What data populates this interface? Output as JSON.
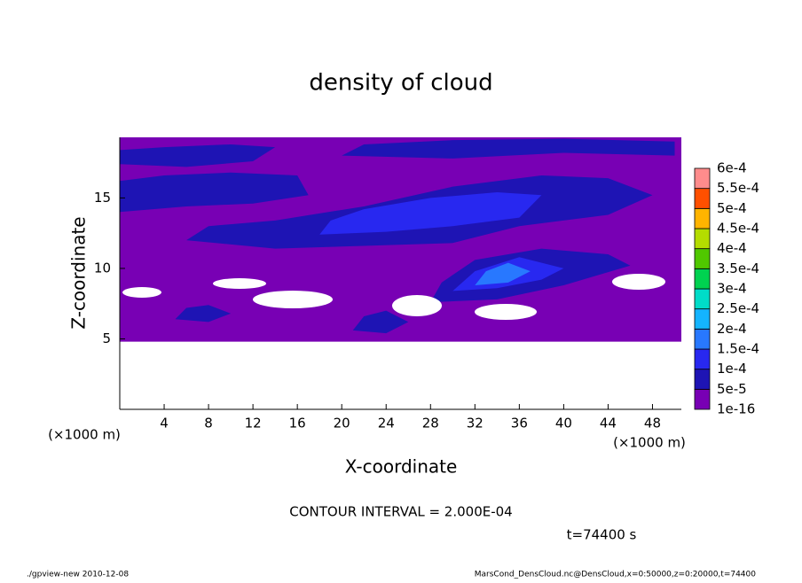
{
  "chart_data": {
    "type": "contour",
    "title": "density of cloud",
    "x_label": "X-coordinate",
    "y_label": "Z-coordinate",
    "x_unit_left": "(×1000 m)",
    "x_unit_right": "(×1000 m)",
    "contour_interval": "CONTOUR INTERVAL = 2.000E-04",
    "time_label": "t=74400 s",
    "footer_left": "./gpview-new  2010-12-08",
    "footer_right": "MarsCond_DensCloud.nc@DensCloud,x=0:50000,z=0:20000,t=74400",
    "xlim": [
      0,
      50.6
    ],
    "ylim": [
      0,
      19.3
    ],
    "xticks": [
      4,
      8,
      12,
      16,
      20,
      24,
      28,
      32,
      36,
      40,
      44,
      48
    ],
    "yticks": [
      5,
      10,
      15
    ],
    "levels": [
      {
        "value": 1e-16,
        "label": "1e-16"
      },
      {
        "value": 5e-05,
        "label": "5e-5"
      },
      {
        "value": 0.0001,
        "label": "1e-4"
      },
      {
        "value": 0.00015,
        "label": "1.5e-4"
      },
      {
        "value": 0.0002,
        "label": "2e-4"
      },
      {
        "value": 0.00025,
        "label": "2.5e-4"
      },
      {
        "value": 0.0003,
        "label": "3e-4"
      },
      {
        "value": 0.00035,
        "label": "3.5e-4"
      },
      {
        "value": 0.0004,
        "label": "4e-4"
      },
      {
        "value": 0.00045,
        "label": "4.5e-4"
      },
      {
        "value": 0.0005,
        "label": "5e-4"
      },
      {
        "value": 0.00055,
        "label": "5.5e-4"
      },
      {
        "value": 0.0006,
        "label": "6e-4"
      }
    ],
    "level_colors": [
      "#7800b4",
      "#1e14b4",
      "#2828f0",
      "#2878ff",
      "#14b4ff",
      "#00dcc8",
      "#00d250",
      "#50c800",
      "#b4dc00",
      "#ffb400",
      "#ff5000",
      "#ff8c8c"
    ],
    "regions": [
      {
        "value": 1e-16,
        "x": [
          0,
          50.6,
          50.6,
          40,
          30,
          20,
          10,
          0
        ],
        "z": [
          4.8,
          4.8,
          19.3,
          19.3,
          19.3,
          19.3,
          19.3,
          19.3
        ]
      },
      {
        "value": 5e-05,
        "x": [
          0,
          6,
          12,
          14,
          10,
          4,
          0
        ],
        "z": [
          17.4,
          17.2,
          17.6,
          18.6,
          18.8,
          18.6,
          18.4
        ]
      },
      {
        "value": 5e-05,
        "x": [
          20,
          30,
          40,
          50,
          50,
          40,
          30,
          22
        ],
        "z": [
          18.0,
          17.8,
          18.2,
          18.0,
          19.0,
          19.2,
          19.1,
          18.8
        ]
      },
      {
        "value": 5e-05,
        "x": [
          0,
          6,
          12,
          17,
          16,
          10,
          4,
          0
        ],
        "z": [
          14.0,
          14.4,
          14.6,
          15.2,
          16.6,
          16.8,
          16.6,
          16.2
        ]
      },
      {
        "value": 5e-05,
        "x": [
          6,
          14,
          22,
          30,
          36,
          44,
          48,
          44,
          38,
          30,
          22,
          14,
          8
        ],
        "z": [
          12.0,
          11.4,
          11.6,
          11.8,
          13.0,
          13.8,
          15.2,
          16.4,
          16.6,
          15.8,
          14.4,
          13.4,
          13.0
        ]
      },
      {
        "value": 5e-05,
        "x": [
          28,
          34,
          40,
          46,
          44,
          38,
          32,
          29
        ],
        "z": [
          7.6,
          7.8,
          8.8,
          10.2,
          11.0,
          11.4,
          10.6,
          9.0
        ]
      },
      {
        "value": 0.0001,
        "x": [
          18,
          24,
          30,
          36,
          38,
          34,
          28,
          22,
          19
        ],
        "z": [
          12.4,
          12.6,
          13.0,
          13.6,
          15.2,
          15.4,
          15.0,
          14.2,
          13.4
        ]
      },
      {
        "value": 0.0001,
        "x": [
          30,
          34,
          38,
          40,
          36,
          32
        ],
        "z": [
          8.4,
          8.6,
          9.2,
          10.0,
          10.8,
          9.8
        ]
      },
      {
        "value": 0.00015,
        "x": [
          32,
          35,
          37,
          35,
          33
        ],
        "z": [
          8.8,
          9.0,
          9.8,
          10.4,
          9.8
        ]
      },
      {
        "value": 5e-05,
        "x": [
          5,
          8,
          10,
          8,
          6
        ],
        "z": [
          6.4,
          6.2,
          6.8,
          7.4,
          7.2
        ]
      },
      {
        "value": 5e-05,
        "x": [
          21,
          24,
          26,
          24,
          22
        ],
        "z": [
          5.6,
          5.4,
          6.2,
          7.0,
          6.6
        ]
      }
    ]
  }
}
